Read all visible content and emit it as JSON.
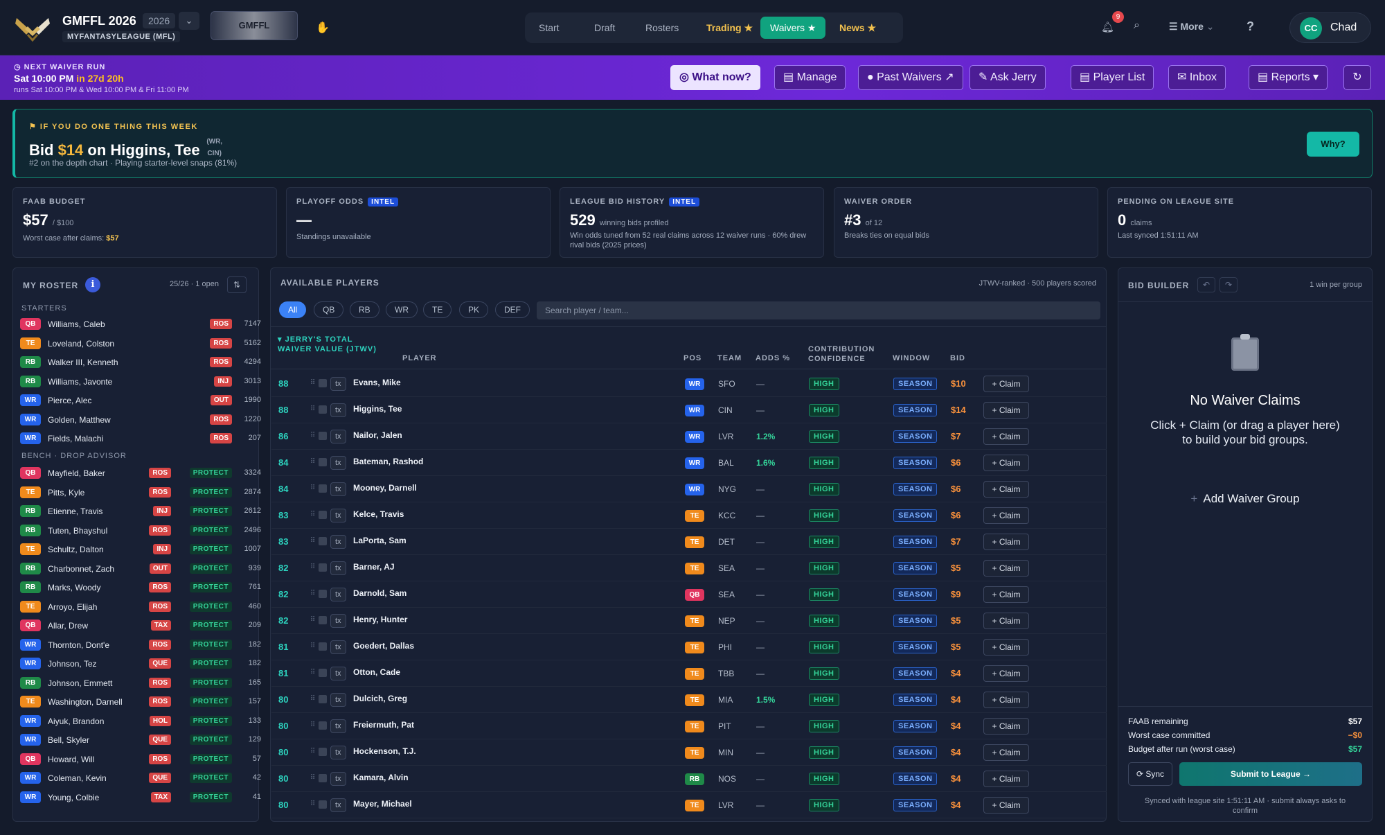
{
  "header": {
    "league_name": "GMFFL 2026",
    "year": "2026",
    "platform": "MYFANTASYLEAGUE (MFL)",
    "banner_text": "GMFFL",
    "nav": [
      {
        "label": "Start"
      },
      {
        "label": "Draft"
      },
      {
        "label": "Rosters"
      },
      {
        "label": "Trading ★"
      },
      {
        "label": "Waivers ★"
      },
      {
        "label": "News ★"
      }
    ],
    "notifications": "9",
    "more_label": "More",
    "help": "?",
    "user_initials": "CC",
    "user_name": "Chad"
  },
  "waiver_bar": {
    "label": "NEXT WAIVER RUN",
    "when": "Sat 10:00 PM",
    "in": "in 27d 20h",
    "runs": "runs Sat 10:00 PM & Wed 10:00 PM & Fri 11:00 PM",
    "buttons": [
      "What now?",
      "Manage",
      "Past Waivers ↗",
      "Ask Jerry",
      "Player List",
      "Inbox",
      "Reports ▾",
      "↻"
    ]
  },
  "hero": {
    "kicker": "IF YOU DO ONE THING THIS WEEK",
    "prefix": "Bid",
    "amount": "$14",
    "mid": "on Higgins, Tee",
    "pos": "(WR, CIN)",
    "sub": "#2 on the depth chart · Playing starter-level snaps (81%)",
    "why": "Why?"
  },
  "stats": {
    "faab": {
      "label": "FAAB BUDGET",
      "value": "$57",
      "of": "/ $100",
      "line_prefix": "Worst case after claims:",
      "line_value": "$57"
    },
    "playoff": {
      "label": "PLAYOFF ODDS",
      "tag": "INTEL",
      "value": "—",
      "line": "Standings unavailable"
    },
    "bids": {
      "label": "LEAGUE BID HISTORY",
      "tag": "INTEL",
      "value": "529",
      "suffix": "winning bids profiled",
      "line": "Win odds tuned from 52 real claims across 12 waiver runs · 60% drew rival bids (2025 prices)"
    },
    "order": {
      "label": "WAIVER ORDER",
      "value": "#3",
      "suffix": "of 12",
      "line": "Breaks ties on equal bids"
    },
    "pending": {
      "label": "PENDING ON LEAGUE SITE",
      "value": "0",
      "suffix": "claims",
      "line": "Last synced 1:51:11 AM"
    }
  },
  "roster": {
    "title": "MY ROSTER",
    "count": "25/26 · 1 open",
    "starters_label": "STARTERS",
    "bench_label": "BENCH · DROP ADVISOR",
    "starters": [
      {
        "pos": "QB",
        "name": "Williams, Caleb",
        "status": "ROS",
        "value": "7147"
      },
      {
        "pos": "TE",
        "name": "Loveland, Colston",
        "status": "ROS",
        "value": "5162"
      },
      {
        "pos": "RB",
        "name": "Walker III, Kenneth",
        "status": "ROS",
        "value": "4294"
      },
      {
        "pos": "RB",
        "name": "Williams, Javonte",
        "status": "INJ",
        "value": "3013"
      },
      {
        "pos": "WR",
        "name": "Pierce, Alec",
        "status": "OUT",
        "value": "1990"
      },
      {
        "pos": "WR",
        "name": "Golden, Matthew",
        "status": "ROS",
        "value": "1220"
      },
      {
        "pos": "WR",
        "name": "Fields, Malachi",
        "status": "ROS",
        "value": "207"
      }
    ],
    "protect_label": "PROTECT",
    "bench": [
      {
        "pos": "QB",
        "name": "Mayfield, Baker",
        "status": "ROS",
        "value": "3324"
      },
      {
        "pos": "TE",
        "name": "Pitts, Kyle",
        "status": "ROS",
        "value": "2874"
      },
      {
        "pos": "RB",
        "name": "Etienne, Travis",
        "status": "INJ",
        "value": "2612"
      },
      {
        "pos": "RB",
        "name": "Tuten, Bhayshul",
        "status": "ROS",
        "value": "2496"
      },
      {
        "pos": "TE",
        "name": "Schultz, Dalton",
        "status": "INJ",
        "value": "1007"
      },
      {
        "pos": "RB",
        "name": "Charbonnet, Zach",
        "status": "OUT",
        "value": "939"
      },
      {
        "pos": "RB",
        "name": "Marks, Woody",
        "status": "ROS",
        "value": "761"
      },
      {
        "pos": "TE",
        "name": "Arroyo, Elijah",
        "status": "ROS",
        "value": "460"
      },
      {
        "pos": "QB",
        "name": "Allar, Drew",
        "status": "TAX",
        "value": "209"
      },
      {
        "pos": "WR",
        "name": "Thornton, Dont'e",
        "status": "ROS",
        "value": "182"
      },
      {
        "pos": "WR",
        "name": "Johnson, Tez",
        "status": "QUE",
        "value": "182"
      },
      {
        "pos": "RB",
        "name": "Johnson, Emmett",
        "status": "ROS",
        "value": "165"
      },
      {
        "pos": "TE",
        "name": "Washington, Darnell",
        "status": "ROS",
        "value": "157"
      },
      {
        "pos": "WR",
        "name": "Aiyuk, Brandon",
        "status": "HOL",
        "value": "133"
      },
      {
        "pos": "WR",
        "name": "Bell, Skyler",
        "status": "QUE",
        "value": "129"
      },
      {
        "pos": "QB",
        "name": "Howard, Will",
        "status": "ROS",
        "value": "57"
      },
      {
        "pos": "WR",
        "name": "Coleman, Kevin",
        "status": "QUE",
        "value": "42"
      },
      {
        "pos": "WR",
        "name": "Young, Colbie",
        "status": "TAX",
        "value": "41"
      }
    ]
  },
  "available": {
    "title": "AVAILABLE PLAYERS",
    "count": "JTWV-ranked · 500 players scored",
    "filters": [
      "All",
      "QB",
      "RB",
      "WR",
      "TE",
      "PK",
      "DEF"
    ],
    "search_placeholder": "Search player / team...",
    "columns": {
      "jtwv": "▾ JERRY'S TOTAL WAIVER VALUE (JTWV)",
      "player": "PLAYER",
      "pos": "POS",
      "team": "TEAM",
      "adds": "ADDS %",
      "conf": "CONTRIBUTION CONFIDENCE",
      "window": "WINDOW",
      "bid": "BID"
    },
    "tx_label": "tx",
    "claim_label": "+ Claim",
    "rows": [
      {
        "jtwv": "88",
        "name": "Evans, Mike",
        "pos": "WR",
        "team": "SFO",
        "adds": "—",
        "conf": "HIGH",
        "window": "SEASON",
        "bid": "$10"
      },
      {
        "jtwv": "88",
        "name": "Higgins, Tee",
        "pos": "WR",
        "team": "CIN",
        "adds": "—",
        "conf": "HIGH",
        "window": "SEASON",
        "bid": "$14"
      },
      {
        "jtwv": "86",
        "name": "Nailor, Jalen",
        "pos": "WR",
        "team": "LVR",
        "adds": "1.2%",
        "conf": "HIGH",
        "window": "SEASON",
        "bid": "$7"
      },
      {
        "jtwv": "84",
        "name": "Bateman, Rashod",
        "pos": "WR",
        "team": "BAL",
        "adds": "1.6%",
        "conf": "HIGH",
        "window": "SEASON",
        "bid": "$6"
      },
      {
        "jtwv": "84",
        "name": "Mooney, Darnell",
        "pos": "WR",
        "team": "NYG",
        "adds": "—",
        "conf": "HIGH",
        "window": "SEASON",
        "bid": "$6"
      },
      {
        "jtwv": "83",
        "name": "Kelce, Travis",
        "pos": "TE",
        "team": "KCC",
        "adds": "—",
        "conf": "HIGH",
        "window": "SEASON",
        "bid": "$6"
      },
      {
        "jtwv": "83",
        "name": "LaPorta, Sam",
        "pos": "TE",
        "team": "DET",
        "adds": "—",
        "conf": "HIGH",
        "window": "SEASON",
        "bid": "$7"
      },
      {
        "jtwv": "82",
        "name": "Barner, AJ",
        "pos": "TE",
        "team": "SEA",
        "adds": "—",
        "conf": "HIGH",
        "window": "SEASON",
        "bid": "$5"
      },
      {
        "jtwv": "82",
        "name": "Darnold, Sam",
        "pos": "QB",
        "team": "SEA",
        "adds": "—",
        "conf": "HIGH",
        "window": "SEASON",
        "bid": "$9"
      },
      {
        "jtwv": "82",
        "name": "Henry, Hunter",
        "pos": "TE",
        "team": "NEP",
        "adds": "—",
        "conf": "HIGH",
        "window": "SEASON",
        "bid": "$5"
      },
      {
        "jtwv": "81",
        "name": "Goedert, Dallas",
        "pos": "TE",
        "team": "PHI",
        "adds": "—",
        "conf": "HIGH",
        "window": "SEASON",
        "bid": "$5"
      },
      {
        "jtwv": "81",
        "name": "Otton, Cade",
        "pos": "TE",
        "team": "TBB",
        "adds": "—",
        "conf": "HIGH",
        "window": "SEASON",
        "bid": "$4"
      },
      {
        "jtwv": "80",
        "name": "Dulcich, Greg",
        "pos": "TE",
        "team": "MIA",
        "adds": "1.5%",
        "conf": "HIGH",
        "window": "SEASON",
        "bid": "$4"
      },
      {
        "jtwv": "80",
        "name": "Freiermuth, Pat",
        "pos": "TE",
        "team": "PIT",
        "adds": "—",
        "conf": "HIGH",
        "window": "SEASON",
        "bid": "$4"
      },
      {
        "jtwv": "80",
        "name": "Hockenson, T.J.",
        "pos": "TE",
        "team": "MIN",
        "adds": "—",
        "conf": "HIGH",
        "window": "SEASON",
        "bid": "$4"
      },
      {
        "jtwv": "80",
        "name": "Kamara, Alvin",
        "pos": "RB",
        "team": "NOS",
        "adds": "—",
        "conf": "HIGH",
        "window": "SEASON",
        "bid": "$4"
      },
      {
        "jtwv": "80",
        "name": "Mayer, Michael",
        "pos": "TE",
        "team": "LVR",
        "adds": "—",
        "conf": "HIGH",
        "window": "SEASON",
        "bid": "$4"
      }
    ]
  },
  "bid_builder": {
    "title": "BID BUILDER",
    "per": "1 win per group",
    "empty_title": "No Waiver Claims",
    "empty_sub": "Click + Claim (or drag a player here) to build your bid groups.",
    "add_group": "Add Waiver Group",
    "faab_remaining_label": "FAAB remaining",
    "faab_remaining": "$57",
    "worst_label": "Worst case committed",
    "worst": "−$0",
    "after_label": "Budget after run (worst case)",
    "after": "$57",
    "sync": "⟳ Sync",
    "submit": "Submit to League →",
    "note": "Synced with league site 1:51:11 AM · submit always asks to confirm",
    "colors": {
      "remaining": "#ffffff",
      "worst": "#fb923c",
      "after": "#34d399"
    }
  }
}
